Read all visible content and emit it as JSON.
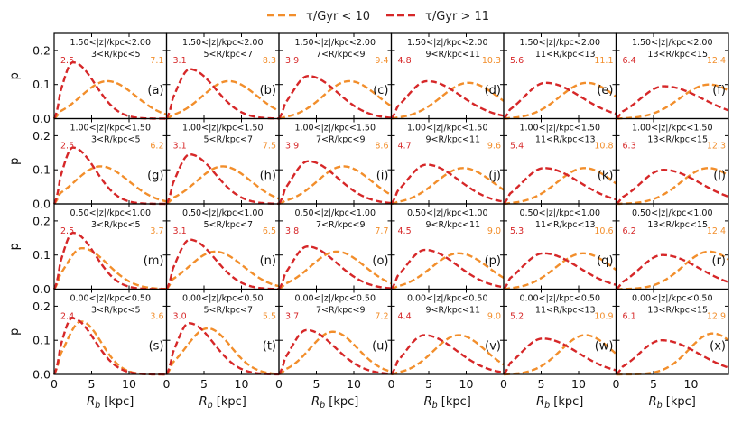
{
  "legend": {
    "items": [
      {
        "label": "τ/Gyr < 10",
        "color": "#f28e2b"
      },
      {
        "label": "τ/Gyr > 11",
        "color": "#d62728"
      }
    ]
  },
  "chart_data": {
    "type": "line",
    "layout": "4x6 grid of panels",
    "xlabel": "R_b [kpc]",
    "ylabel": "p",
    "xlim": [
      0,
      15
    ],
    "ylim": [
      0,
      0.25
    ],
    "xticks": [
      0,
      5,
      10
    ],
    "yticks": [
      0.0,
      0.1,
      0.2
    ],
    "xtick_labels": [
      "0",
      "5",
      "10"
    ],
    "ytick_labels": [
      "0.0",
      "0.1",
      "0.2"
    ],
    "colors": {
      "young": "#f28e2b",
      "old": "#d62728"
    },
    "z_bins": [
      "1.50<|z|/kpc<2.00",
      "1.00<|z|/kpc<1.50",
      "0.50<|z|/kpc<1.00",
      "0.00<|z|/kpc<0.50"
    ],
    "r_bins": [
      "3<R/kpc<5",
      "5<R/kpc<7",
      "7<R/kpc<9",
      "9<R/kpc<11",
      "11<R/kpc<13",
      "13<R/kpc<15"
    ],
    "panels": [
      {
        "label": "(a)",
        "zbin": "1.50<|z|/kpc<2.00",
        "rbin": "3<R/kpc<5",
        "old_peak_text": "2.5",
        "young_peak_text": "7.1",
        "old_peak": [
          2.5,
          0.165
        ],
        "young_peak": [
          7.1,
          0.11
        ]
      },
      {
        "label": "(b)",
        "zbin": "1.50<|z|/kpc<2.00",
        "rbin": "5<R/kpc<7",
        "old_peak_text": "3.1",
        "young_peak_text": "8.3",
        "old_peak": [
          3.1,
          0.145
        ],
        "young_peak": [
          8.3,
          0.11
        ]
      },
      {
        "label": "(c)",
        "zbin": "1.50<|z|/kpc<2.00",
        "rbin": "7<R/kpc<9",
        "old_peak_text": "3.9",
        "young_peak_text": "9.4",
        "old_peak": [
          3.9,
          0.125
        ],
        "young_peak": [
          9.4,
          0.11
        ]
      },
      {
        "label": "(d)",
        "zbin": "1.50<|z|/kpc<2.00",
        "rbin": "9<R/kpc<11",
        "old_peak_text": "4.8",
        "young_peak_text": "10.3",
        "old_peak": [
          4.8,
          0.11
        ],
        "young_peak": [
          10.3,
          0.105
        ]
      },
      {
        "label": "(e)",
        "zbin": "1.50<|z|/kpc<2.00",
        "rbin": "11<R/kpc<13",
        "old_peak_text": "5.6",
        "young_peak_text": "11.1",
        "old_peak": [
          5.6,
          0.105
        ],
        "young_peak": [
          11.1,
          0.105
        ]
      },
      {
        "label": "(f)",
        "zbin": "1.50<|z|/kpc<2.00",
        "rbin": "13<R/kpc<15",
        "old_peak_text": "6.4",
        "young_peak_text": "12.4",
        "old_peak": [
          6.4,
          0.095
        ],
        "young_peak": [
          12.4,
          0.1
        ]
      },
      {
        "label": "(g)",
        "zbin": "1.00<|z|/kpc<1.50",
        "rbin": "3<R/kpc<5",
        "old_peak_text": "2.5",
        "young_peak_text": "6.2",
        "old_peak": [
          2.5,
          0.165
        ],
        "young_peak": [
          6.2,
          0.11
        ]
      },
      {
        "label": "(h)",
        "zbin": "1.00<|z|/kpc<1.50",
        "rbin": "5<R/kpc<7",
        "old_peak_text": "3.1",
        "young_peak_text": "7.5",
        "old_peak": [
          3.1,
          0.145
        ],
        "young_peak": [
          7.5,
          0.11
        ]
      },
      {
        "label": "(i)",
        "zbin": "1.00<|z|/kpc<1.50",
        "rbin": "7<R/kpc<9",
        "old_peak_text": "3.9",
        "young_peak_text": "8.6",
        "old_peak": [
          3.9,
          0.125
        ],
        "young_peak": [
          8.6,
          0.11
        ]
      },
      {
        "label": "(j)",
        "zbin": "1.00<|z|/kpc<1.50",
        "rbin": "9<R/kpc<11",
        "old_peak_text": "4.7",
        "young_peak_text": "9.6",
        "old_peak": [
          4.7,
          0.115
        ],
        "young_peak": [
          9.6,
          0.105
        ]
      },
      {
        "label": "(k)",
        "zbin": "1.00<|z|/kpc<1.50",
        "rbin": "11<R/kpc<13",
        "old_peak_text": "5.4",
        "young_peak_text": "10.8",
        "old_peak": [
          5.4,
          0.105
        ],
        "young_peak": [
          10.8,
          0.105
        ]
      },
      {
        "label": "(l)",
        "zbin": "1.00<|z|/kpc<1.50",
        "rbin": "13<R/kpc<15",
        "old_peak_text": "6.3",
        "young_peak_text": "12.3",
        "old_peak": [
          6.3,
          0.1
        ],
        "young_peak": [
          12.3,
          0.105
        ]
      },
      {
        "label": "(m)",
        "zbin": "0.50<|z|/kpc<1.00",
        "rbin": "3<R/kpc<5",
        "old_peak_text": "2.5",
        "young_peak_text": "3.7",
        "old_peak": [
          2.5,
          0.165
        ],
        "young_peak": [
          3.7,
          0.12
        ]
      },
      {
        "label": "(n)",
        "zbin": "0.50<|z|/kpc<1.00",
        "rbin": "5<R/kpc<7",
        "old_peak_text": "3.1",
        "young_peak_text": "6.5",
        "old_peak": [
          3.1,
          0.145
        ],
        "young_peak": [
          6.5,
          0.11
        ]
      },
      {
        "label": "(o)",
        "zbin": "0.50<|z|/kpc<1.00",
        "rbin": "7<R/kpc<9",
        "old_peak_text": "3.8",
        "young_peak_text": "7.7",
        "old_peak": [
          3.8,
          0.125
        ],
        "young_peak": [
          7.7,
          0.11
        ]
      },
      {
        "label": "(p)",
        "zbin": "0.50<|z|/kpc<1.00",
        "rbin": "9<R/kpc<11",
        "old_peak_text": "4.5",
        "young_peak_text": "9.0",
        "old_peak": [
          4.5,
          0.115
        ],
        "young_peak": [
          9.0,
          0.105
        ]
      },
      {
        "label": "(q)",
        "zbin": "0.50<|z|/kpc<1.00",
        "rbin": "11<R/kpc<13",
        "old_peak_text": "5.3",
        "young_peak_text": "10.6",
        "old_peak": [
          5.3,
          0.105
        ],
        "young_peak": [
          10.6,
          0.105
        ]
      },
      {
        "label": "(r)",
        "zbin": "0.50<|z|/kpc<1.00",
        "rbin": "13<R/kpc<15",
        "old_peak_text": "6.2",
        "young_peak_text": "12.4",
        "old_peak": [
          6.2,
          0.1
        ],
        "young_peak": [
          12.4,
          0.11
        ]
      },
      {
        "label": "(s)",
        "zbin": "0.00<|z|/kpc<0.50",
        "rbin": "3<R/kpc<5",
        "old_peak_text": "2.4",
        "young_peak_text": "3.6",
        "old_peak": [
          2.4,
          0.165
        ],
        "young_peak": [
          3.6,
          0.155
        ]
      },
      {
        "label": "(t)",
        "zbin": "0.00<|z|/kpc<0.50",
        "rbin": "5<R/kpc<7",
        "old_peak_text": "3.0",
        "young_peak_text": "5.5",
        "old_peak": [
          3.0,
          0.15
        ],
        "young_peak": [
          5.5,
          0.135
        ]
      },
      {
        "label": "(u)",
        "zbin": "0.00<|z|/kpc<0.50",
        "rbin": "7<R/kpc<9",
        "old_peak_text": "3.7",
        "young_peak_text": "7.2",
        "old_peak": [
          3.7,
          0.13
        ],
        "young_peak": [
          7.2,
          0.125
        ]
      },
      {
        "label": "(v)",
        "zbin": "0.00<|z|/kpc<0.50",
        "rbin": "9<R/kpc<11",
        "old_peak_text": "4.4",
        "young_peak_text": "9.0",
        "old_peak": [
          4.4,
          0.115
        ],
        "young_peak": [
          9.0,
          0.115
        ]
      },
      {
        "label": "(w)",
        "zbin": "0.00<|z|/kpc<0.50",
        "rbin": "11<R/kpc<13",
        "old_peak_text": "5.2",
        "young_peak_text": "10.9",
        "old_peak": [
          5.2,
          0.105
        ],
        "young_peak": [
          10.9,
          0.115
        ]
      },
      {
        "label": "(x)",
        "zbin": "0.00<|z|/kpc<0.50",
        "rbin": "13<R/kpc<15",
        "old_peak_text": "6.1",
        "young_peak_text": "12.9",
        "old_peak": [
          6.1,
          0.1
        ],
        "young_peak": [
          12.9,
          0.12
        ]
      }
    ]
  }
}
